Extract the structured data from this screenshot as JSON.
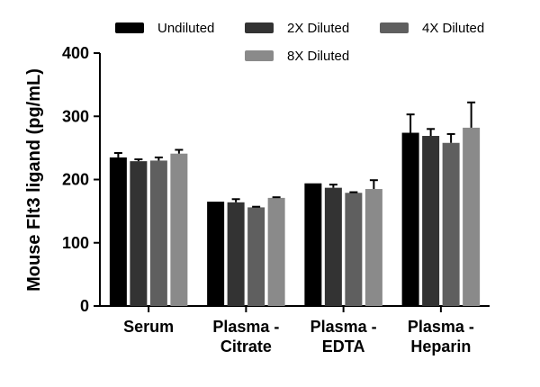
{
  "chart_data": {
    "type": "bar",
    "title": "",
    "xlabel": "",
    "ylabel": "Mouse Flt3 ligand (pg/mL)",
    "ylim": [
      0,
      400
    ],
    "yticks": [
      0,
      100,
      200,
      300,
      400
    ],
    "categories": [
      [
        "Serum"
      ],
      [
        "Plasma -",
        "Citrate"
      ],
      [
        "Plasma -",
        "EDTA"
      ],
      [
        "Plasma -",
        "Heparin"
      ]
    ],
    "legend_position": "top",
    "series": [
      {
        "name": "Undiluted",
        "color": "#000000",
        "values": [
          235,
          165,
          194,
          274
        ],
        "errors": [
          7,
          0,
          0,
          29
        ]
      },
      {
        "name": "2X Diluted",
        "color": "#333333",
        "values": [
          229,
          164,
          187,
          269
        ],
        "errors": [
          3,
          5,
          5,
          11
        ]
      },
      {
        "name": "4X Diluted",
        "color": "#5f5f5f",
        "values": [
          230,
          156,
          179,
          258
        ],
        "errors": [
          5,
          1,
          1,
          14
        ]
      },
      {
        "name": "8X Diluted",
        "color": "#8a8a8a",
        "values": [
          241,
          171,
          185,
          282
        ],
        "errors": [
          6,
          1,
          14,
          40
        ]
      }
    ]
  }
}
